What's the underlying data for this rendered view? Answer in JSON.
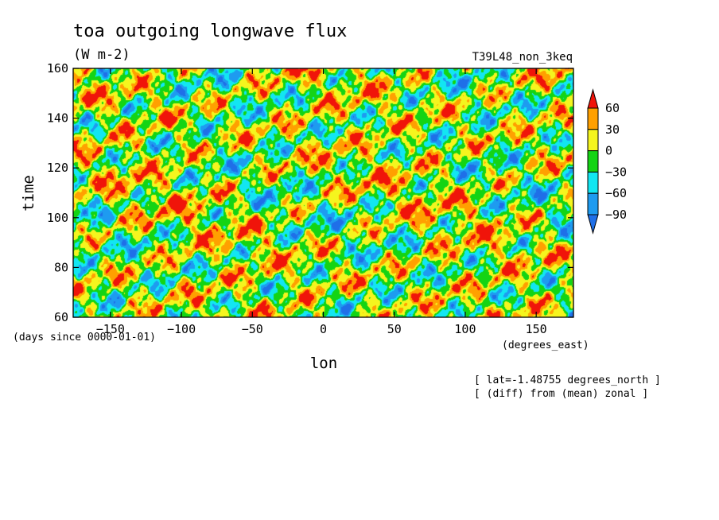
{
  "chart_data": {
    "type": "heatmap",
    "title": "toa outgoing longwave flux",
    "units": "(W m-2)",
    "run_name": "T39L48_non_3keq",
    "xlabel": "lon",
    "ylabel": "time",
    "x_units": "(degrees_east)",
    "y_units": "(days since 0000-01-01)",
    "xlim": [
      -176.25,
      176.25
    ],
    "ylim": [
      60,
      160
    ],
    "x_ticks": [
      -150,
      -100,
      -50,
      0,
      50,
      100,
      150
    ],
    "y_ticks": [
      60,
      80,
      100,
      120,
      140,
      160
    ],
    "notes": [
      "[ lat=-1.48755 degrees_north ]",
      "[ (diff) from (mean) zonal ]"
    ],
    "colorbar": {
      "levels": [
        -90,
        -60,
        -30,
        0,
        30,
        60
      ],
      "colors": [
        "#1f6fe8",
        "#1e9bf0",
        "#12e6f2",
        "#14d414",
        "#f5f51e",
        "#ffa000",
        "#f0140a"
      ],
      "extend": "both"
    }
  }
}
